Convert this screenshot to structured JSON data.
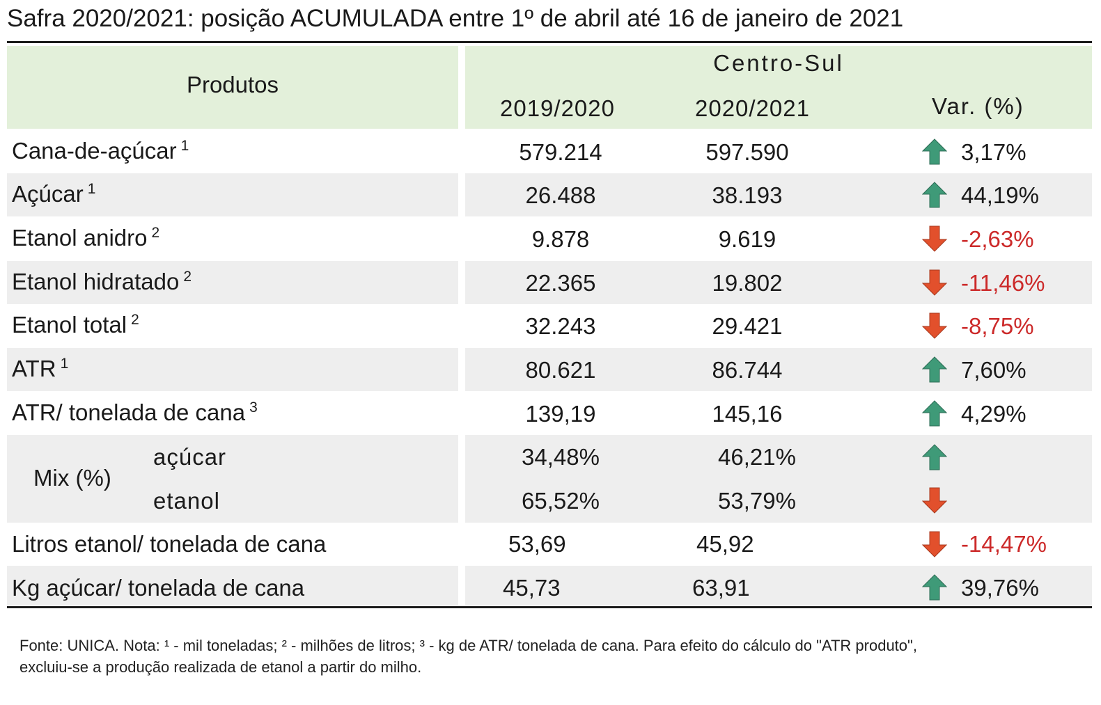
{
  "title": "Safra 2020/2021: posição ACUMULADA entre 1º de abril até 16 de janeiro de 2021",
  "header": {
    "produtos": "Produtos",
    "region": "Centro-Sul",
    "col1": "2019/2020",
    "col2": "2020/2021",
    "var": "Var. (%)"
  },
  "rows": [
    {
      "label": "Cana-de-açúcar",
      "note": "1",
      "v1": "579.214",
      "v2": "597.590",
      "var": "3,17%",
      "trend": "up"
    },
    {
      "label": "Açúcar",
      "note": "1",
      "v1": "26.488",
      "v2": "38.193",
      "var": "44,19%",
      "trend": "up"
    },
    {
      "label": "Etanol anidro",
      "note": "2",
      "v1": "9.878",
      "v2": "9.619",
      "var": "-2,63%",
      "trend": "down"
    },
    {
      "label": "Etanol hidratado",
      "note": "2",
      "v1": "22.365",
      "v2": "19.802",
      "var": "-11,46%",
      "trend": "down"
    },
    {
      "label": "Etanol total",
      "note": "2",
      "v1": "32.243",
      "v2": "29.421",
      "var": "-8,75%",
      "trend": "down"
    },
    {
      "label": "ATR",
      "note": "1",
      "v1": "80.621",
      "v2": "86.744",
      "var": "7,60%",
      "trend": "up"
    },
    {
      "label": "ATR/ tonelada de cana",
      "note": "3",
      "v1": "139,19",
      "v2": "145,16",
      "var": "4,29%",
      "trend": "up"
    }
  ],
  "mix": {
    "label": "Mix (%)",
    "sugar": {
      "label": "açúcar",
      "v1": "34,48%",
      "v2": "46,21%",
      "trend": "up"
    },
    "ethanol": {
      "label": "etanol",
      "v1": "65,52%",
      "v2": "53,79%",
      "trend": "down"
    }
  },
  "tail_rows": [
    {
      "label": "Litros etanol/ tonelada de cana",
      "v1": "53,69",
      "v2": "45,92",
      "var": "-14,47%",
      "trend": "down"
    },
    {
      "label": "Kg açúcar/ tonelada de cana",
      "v1": "45,73",
      "v2": "63,91",
      "var": "39,76%",
      "trend": "up"
    }
  ],
  "footnote": {
    "line1": "Fonte: UNICA. Nota: ¹ - mil toneladas; ² - milhões de litros; ³ - kg de ATR/ tonelada de cana. Para efeito do cálculo do \"ATR produto\",",
    "line2": "excluiu-se a produção realizada de etanol a partir do milho."
  },
  "colors": {
    "header_bg": "#e3f0da",
    "band_bg": "#eeeeee",
    "negative_text": "#cc2a2a",
    "up_arrow": "#3f9a78",
    "down_arrow": "#e2502c"
  }
}
